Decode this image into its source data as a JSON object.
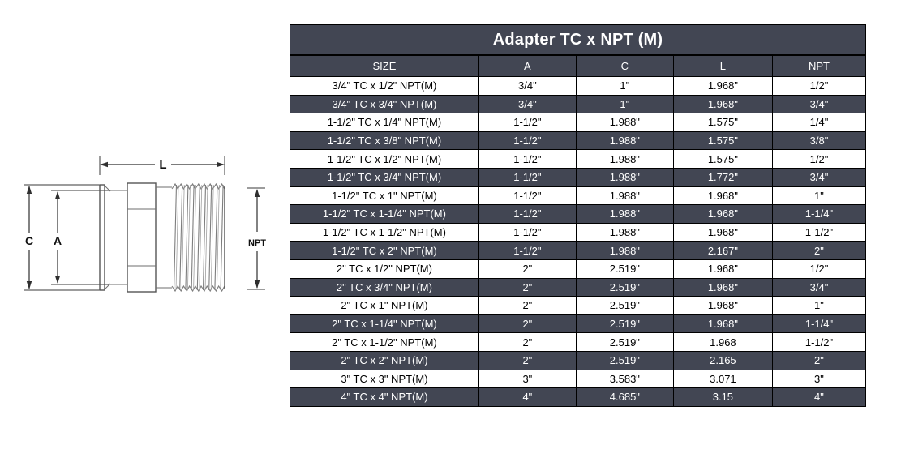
{
  "title": "Adapter TC x NPT (M)",
  "diagram": {
    "labels": {
      "l": "L",
      "c": "C",
      "a": "A",
      "npt": "NPT"
    }
  },
  "table": {
    "columns": [
      "SIZE",
      "A",
      "C",
      "L",
      "NPT"
    ],
    "rows": [
      [
        "3/4\" TC x 1/2\" NPT(M)",
        "3/4\"",
        "1\"",
        "1.968\"",
        "1/2\""
      ],
      [
        "3/4\" TC x 3/4\" NPT(M)",
        "3/4\"",
        "1\"",
        "1.968\"",
        "3/4\""
      ],
      [
        "1-1/2\" TC x 1/4\" NPT(M)",
        "1-1/2\"",
        "1.988\"",
        "1.575\"",
        "1/4\""
      ],
      [
        "1-1/2\" TC x 3/8\" NPT(M)",
        "1-1/2\"",
        "1.988\"",
        "1.575\"",
        "3/8\""
      ],
      [
        "1-1/2\" TC x 1/2\" NPT(M)",
        "1-1/2\"",
        "1.988\"",
        "1.575\"",
        "1/2\""
      ],
      [
        "1-1/2\" TC x 3/4\" NPT(M)",
        "1-1/2\"",
        "1.988\"",
        "1.772\"",
        "3/4\""
      ],
      [
        "1-1/2\" TC x 1\" NPT(M)",
        "1-1/2\"",
        "1.988\"",
        "1.968\"",
        "1\""
      ],
      [
        "1-1/2\" TC x 1-1/4\" NPT(M)",
        "1-1/2\"",
        "1.988\"",
        "1.968\"",
        "1-1/4\""
      ],
      [
        "1-1/2\" TC x 1-1/2\" NPT(M)",
        "1-1/2\"",
        "1.988\"",
        "1.968\"",
        "1-1/2\""
      ],
      [
        "1-1/2\" TC x 2\" NPT(M)",
        "1-1/2\"",
        "1.988\"",
        "2.167\"",
        "2\""
      ],
      [
        "2\" TC x 1/2\" NPT(M)",
        "2\"",
        "2.519\"",
        "1.968\"",
        "1/2\""
      ],
      [
        "2\" TC x 3/4\" NPT(M)",
        "2\"",
        "2.519\"",
        "1.968\"",
        "3/4\""
      ],
      [
        "2\" TC x 1\" NPT(M)",
        "2\"",
        "2.519\"",
        "1.968\"",
        "1\""
      ],
      [
        "2\" TC x 1-1/4\" NPT(M)",
        "2\"",
        "2.519\"",
        "1.968\"",
        "1-1/4\""
      ],
      [
        "2\" TC x 1-1/2\" NPT(M)",
        "2\"",
        "2.519\"",
        "1.968",
        "1-1/2\""
      ],
      [
        "2\" TC x 2\" NPT(M)",
        "2\"",
        "2.519\"",
        "2.165",
        "2\""
      ],
      [
        "3\" TC x 3\" NPT(M)",
        "3\"",
        "3.583\"",
        "3.071",
        "3\""
      ],
      [
        "4\" TC x 4\" NPT(M)",
        "4\"",
        "4.685\"",
        "3.15",
        "4\""
      ]
    ]
  },
  "colors": {
    "dark_row_bg": "#424653",
    "light_row_bg": "#ffffff",
    "border": "#000000",
    "dark_row_text": "#ffffff",
    "light_row_text": "#000000"
  }
}
